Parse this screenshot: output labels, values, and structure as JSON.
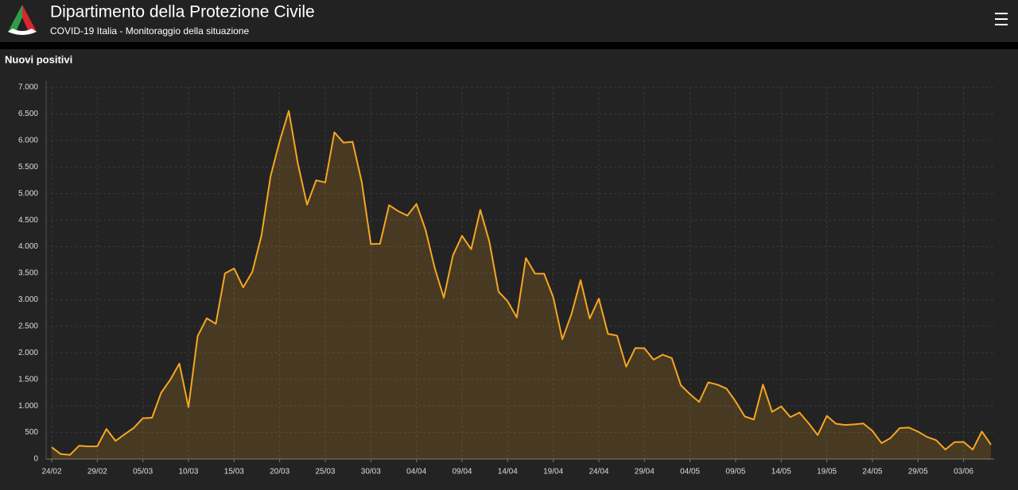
{
  "header": {
    "title": "Dipartimento della Protezione Civile",
    "subtitle": "COVID-19 Italia - Monitoraggio della situazione"
  },
  "chart_data": {
    "type": "area",
    "title": "Nuovi positivi",
    "categories": [
      "24/02",
      null,
      null,
      null,
      null,
      "29/02",
      null,
      null,
      null,
      null,
      "05/03",
      null,
      null,
      null,
      null,
      "10/03",
      null,
      null,
      null,
      null,
      "15/03",
      null,
      null,
      null,
      null,
      "20/03",
      null,
      null,
      null,
      null,
      "25/03",
      null,
      null,
      null,
      null,
      "30/03",
      null,
      null,
      null,
      null,
      "04/04",
      null,
      null,
      null,
      null,
      "09/04",
      null,
      null,
      null,
      null,
      "14/04",
      null,
      null,
      null,
      null,
      "19/04",
      null,
      null,
      null,
      null,
      "24/04",
      null,
      null,
      null,
      null,
      "29/04",
      null,
      null,
      null,
      null,
      "04/05",
      null,
      null,
      null,
      null,
      "09/05",
      null,
      null,
      null,
      null,
      "14/05",
      null,
      null,
      null,
      null,
      "19/05",
      null,
      null,
      null,
      null,
      "24/05",
      null,
      null,
      null,
      null,
      "29/05",
      null,
      null,
      null,
      null,
      "03/06",
      null,
      null,
      null
    ],
    "values": [
      221,
      93,
      78,
      250,
      238,
      240,
      566,
      342,
      466,
      587,
      769,
      778,
      1247,
      1492,
      1797,
      977,
      2313,
      2651,
      2547,
      3497,
      3590,
      3233,
      3526,
      4207,
      5322,
      5986,
      6557,
      5560,
      4789,
      5249,
      5210,
      6153,
      5959,
      5974,
      5217,
      4050,
      4053,
      4782,
      4668,
      4585,
      4805,
      4316,
      3599,
      3039,
      3836,
      4204,
      3951,
      4694,
      4092,
      3153,
      2972,
      2667,
      3786,
      3493,
      3491,
      3047,
      2256,
      2729,
      3370,
      2646,
      3021,
      2357,
      2324,
      1739,
      2091,
      2086,
      1872,
      1965,
      1900,
      1389,
      1221,
      1075,
      1444,
      1401,
      1327,
      1083,
      802,
      744,
      1402,
      888,
      992,
      789,
      875,
      675,
      451,
      813,
      665,
      642,
      652,
      669,
      531,
      300,
      397,
      584,
      593,
      516,
      416,
      355,
      178,
      318,
      321,
      177,
      518,
      270
    ],
    "color": "#f5a623",
    "ylim": [
      0,
      7000
    ],
    "yticks": [
      0,
      500,
      {
        "value": 1000,
        "label": "1.000"
      },
      {
        "value": 1500,
        "label": "1.500"
      },
      {
        "value": 2000,
        "label": "2.000"
      },
      {
        "value": 2500,
        "label": "2.500"
      },
      {
        "value": 3000,
        "label": "3.000"
      },
      {
        "value": 3500,
        "label": "3.500"
      },
      {
        "value": 4000,
        "label": "4.000"
      },
      {
        "value": 4500,
        "label": "4.500"
      },
      {
        "value": 5000,
        "label": "5.000"
      },
      {
        "value": 5500,
        "label": "5.500"
      },
      {
        "value": 6000,
        "label": "6.000"
      },
      {
        "value": 6500,
        "label": "6.500"
      },
      {
        "value": 7000,
        "label": "7.000"
      }
    ],
    "grid": true
  }
}
